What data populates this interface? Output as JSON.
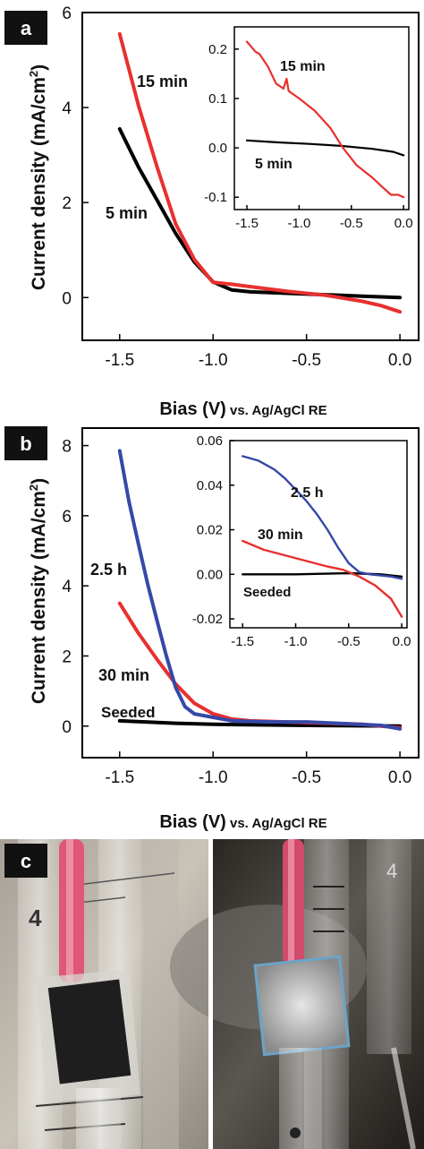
{
  "panels": {
    "a": {
      "letter": "a"
    },
    "b": {
      "letter": "b"
    },
    "c": {
      "letter": "c"
    }
  },
  "axis_text": {
    "ylabel_main": "Current density (mA/cm",
    "ylabel_sup": "2",
    "ylabel_close": ")",
    "xlabel_main": "Bias (V)",
    "xlabel_small": " vs. Ag/AgCl RE"
  },
  "colors": {
    "red": "#e8302f",
    "black": "#000000",
    "blue": "#3549a8"
  },
  "chart_data": [
    {
      "type": "line",
      "panel": "a",
      "xlabel": "Bias (V) vs. Ag/AgCl RE",
      "ylabel": "Current density (mA/cm2)",
      "xlim": [
        -1.7,
        0.1
      ],
      "ylim": [
        -0.9,
        6.0
      ],
      "xticks": [
        -1.5,
        -1.0,
        -0.5,
        0.0
      ],
      "yticks": [
        0,
        2,
        4,
        6
      ],
      "series": [
        {
          "name": "5 min",
          "color": "black",
          "x": [
            -1.5,
            -1.4,
            -1.3,
            -1.2,
            -1.1,
            -1.0,
            -0.9,
            -0.8,
            -0.6,
            -0.4,
            -0.2,
            0.0
          ],
          "y": [
            3.55,
            2.75,
            2.05,
            1.35,
            0.75,
            0.33,
            0.16,
            0.12,
            0.09,
            0.06,
            0.03,
            0.0
          ]
        },
        {
          "name": "15 min",
          "color": "red",
          "x": [
            -1.5,
            -1.4,
            -1.3,
            -1.2,
            -1.1,
            -1.0,
            -0.9,
            -0.8,
            -0.6,
            -0.4,
            -0.2,
            -0.1,
            0.0
          ],
          "y": [
            5.55,
            4.05,
            2.75,
            1.55,
            0.8,
            0.32,
            0.28,
            0.23,
            0.13,
            0.05,
            -0.08,
            -0.17,
            -0.3
          ]
        }
      ],
      "labels": [
        "15 min",
        "5 min"
      ],
      "inset": {
        "xlim": [
          -1.62,
          0.05
        ],
        "ylim": [
          -0.125,
          0.245
        ],
        "xticks": [
          -1.5,
          -1.0,
          -0.5,
          0.0
        ],
        "yticks": [
          -0.1,
          0.0,
          0.1,
          0.2
        ],
        "ytick_labels": [
          "-0.1",
          "0.0",
          "0.1",
          "0.2"
        ],
        "series": [
          {
            "name": "5 min",
            "color": "black",
            "x": [
              -1.5,
              -1.2,
              -0.9,
              -0.6,
              -0.3,
              -0.1,
              0.0
            ],
            "y": [
              0.015,
              0.011,
              0.008,
              0.004,
              -0.002,
              -0.008,
              -0.015
            ]
          },
          {
            "name": "15 min",
            "color": "red",
            "x": [
              -1.5,
              -1.42,
              -1.38,
              -1.3,
              -1.22,
              -1.15,
              -1.12,
              -1.1,
              -1.0,
              -0.85,
              -0.7,
              -0.58,
              -0.45,
              -0.3,
              -0.2,
              -0.12,
              -0.05,
              0.0
            ],
            "y": [
              0.215,
              0.195,
              0.19,
              0.165,
              0.13,
              0.12,
              0.14,
              0.115,
              0.1,
              0.075,
              0.04,
              0.0,
              -0.035,
              -0.06,
              -0.08,
              -0.095,
              -0.095,
              -0.1
            ]
          }
        ],
        "labels": [
          "15 min",
          "5 min"
        ]
      }
    },
    {
      "type": "line",
      "panel": "b",
      "xlabel": "Bias (V) vs. Ag/AgCl RE",
      "ylabel": "Current density (mA/cm2)",
      "xlim": [
        -1.7,
        0.1
      ],
      "ylim": [
        -0.9,
        8.5
      ],
      "xticks": [
        -1.5,
        -1.0,
        -0.5,
        0.0
      ],
      "yticks": [
        0,
        2,
        4,
        6,
        8
      ],
      "series": [
        {
          "name": "Seeded",
          "color": "black",
          "x": [
            -1.5,
            -1.2,
            -1.0,
            -0.5,
            0.0
          ],
          "y": [
            0.15,
            0.08,
            0.05,
            0.02,
            0.0
          ]
        },
        {
          "name": "30 min",
          "color": "red",
          "x": [
            -1.5,
            -1.4,
            -1.3,
            -1.2,
            -1.1,
            -1.0,
            -0.9,
            -0.8,
            -0.5,
            -0.2,
            0.0
          ],
          "y": [
            3.5,
            2.65,
            1.9,
            1.2,
            0.65,
            0.35,
            0.2,
            0.15,
            0.1,
            0.05,
            -0.05
          ]
        },
        {
          "name": "2.5 h",
          "color": "blue",
          "x": [
            -1.5,
            -1.45,
            -1.4,
            -1.35,
            -1.3,
            -1.25,
            -1.2,
            -1.15,
            -1.1,
            -1.0,
            -0.9,
            -0.7,
            -0.5,
            -0.3,
            -0.1,
            0.0
          ],
          "y": [
            7.85,
            6.4,
            5.2,
            4.05,
            3.0,
            2.0,
            1.1,
            0.55,
            0.35,
            0.25,
            0.15,
            0.12,
            0.12,
            0.07,
            0.02,
            -0.08
          ]
        }
      ],
      "labels": [
        "2.5 h",
        "30 min",
        "Seeded"
      ],
      "inset": {
        "xlim": [
          -1.62,
          0.05
        ],
        "ylim": [
          -0.024,
          0.06
        ],
        "xticks": [
          -1.5,
          -1.0,
          -0.5,
          0.0
        ],
        "yticks": [
          -0.02,
          0.0,
          0.02,
          0.04,
          0.06
        ],
        "ytick_labels": [
          "-0.02",
          "0.00",
          "0.02",
          "0.04",
          "0.06"
        ],
        "series": [
          {
            "name": "Seeded",
            "color": "black",
            "x": [
              -1.5,
              -1.0,
              -0.5,
              -0.2,
              0.0
            ],
            "y": [
              0.0,
              0.0,
              0.0005,
              0.0,
              -0.001
            ]
          },
          {
            "name": "30 min",
            "color": "red",
            "x": [
              -1.5,
              -1.3,
              -1.1,
              -0.9,
              -0.7,
              -0.55,
              -0.4,
              -0.25,
              -0.1,
              0.0
            ],
            "y": [
              0.015,
              0.011,
              0.0085,
              0.006,
              0.0035,
              0.002,
              -0.001,
              -0.005,
              -0.011,
              -0.019
            ]
          },
          {
            "name": "2.5 h",
            "color": "blue",
            "x": [
              -1.5,
              -1.35,
              -1.2,
              -1.1,
              -1.0,
              -0.9,
              -0.8,
              -0.7,
              -0.6,
              -0.5,
              -0.4,
              -0.3,
              -0.1,
              0.0
            ],
            "y": [
              0.053,
              0.051,
              0.047,
              0.043,
              0.038,
              0.033,
              0.027,
              0.02,
              0.012,
              0.005,
              0.001,
              0.0,
              -0.001,
              -0.002
            ]
          }
        ],
        "labels": [
          "2.5 h",
          "30 min",
          "Seeded"
        ]
      }
    }
  ],
  "photos": {
    "left": {
      "tube_text": "4"
    },
    "right": {
      "tube_text": "4"
    }
  }
}
